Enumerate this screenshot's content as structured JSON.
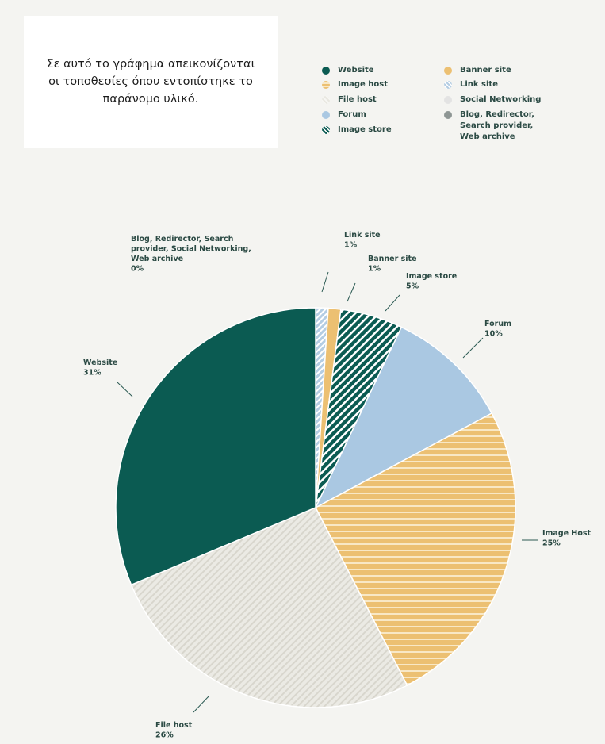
{
  "caption": "Σε αυτό το γράφημα απεικονίζονται οι τοποθεσίες όπου εντοπίστηκε το παράνομο υλικό.",
  "legend": [
    {
      "label": "Website",
      "color": "#0b5b52",
      "pattern": "solid"
    },
    {
      "label": "Banner site",
      "color": "#ecc072",
      "pattern": "solid"
    },
    {
      "label": "Image host",
      "color": "#ecc072",
      "pattern": "horizontal"
    },
    {
      "label": "Link site",
      "color": "#b4cde3",
      "pattern": "diagonal"
    },
    {
      "label": "File host",
      "color": "#e3e2db",
      "pattern": "diagonal-light"
    },
    {
      "label": "Social Networking",
      "color": "#e3e3e3",
      "pattern": "solid"
    },
    {
      "label": "Forum",
      "color": "#aac8e2",
      "pattern": "solid"
    },
    {
      "label": "Blog, Redirector, Search provider, Web archive",
      "color": "#8e9694",
      "pattern": "solid"
    },
    {
      "label": "Image store",
      "color": "#0b5b52",
      "pattern": "diagonal-dark"
    }
  ],
  "chart_data": {
    "type": "pie",
    "slices": [
      {
        "label": "Link site",
        "value": 1,
        "display": "1%",
        "color": "#b4cde3",
        "pattern": "diagonal"
      },
      {
        "label": "Banner site",
        "value": 1,
        "display": "1%",
        "color": "#ecc072",
        "pattern": "solid"
      },
      {
        "label": "Image store",
        "value": 5,
        "display": "5%",
        "color": "#0b5b52",
        "pattern": "diagonal-dark"
      },
      {
        "label": "Forum",
        "value": 10,
        "display": "10%",
        "color": "#aac8e2",
        "pattern": "solid"
      },
      {
        "label": "Image Host",
        "value": 25,
        "display": "25%",
        "color": "#ecc072",
        "pattern": "horizontal"
      },
      {
        "label": "File host",
        "value": 26,
        "display": "26%",
        "color": "#e3e2db",
        "pattern": "diagonal-light"
      },
      {
        "label": "Website",
        "value": 31,
        "display": "31%",
        "color": "#0b5b52",
        "pattern": "solid"
      },
      {
        "label": "Blog, Redirector, Search provider, Social Networking, Web archive",
        "value": 0,
        "display": "0%",
        "color": "#8e9694",
        "pattern": "solid"
      }
    ]
  }
}
